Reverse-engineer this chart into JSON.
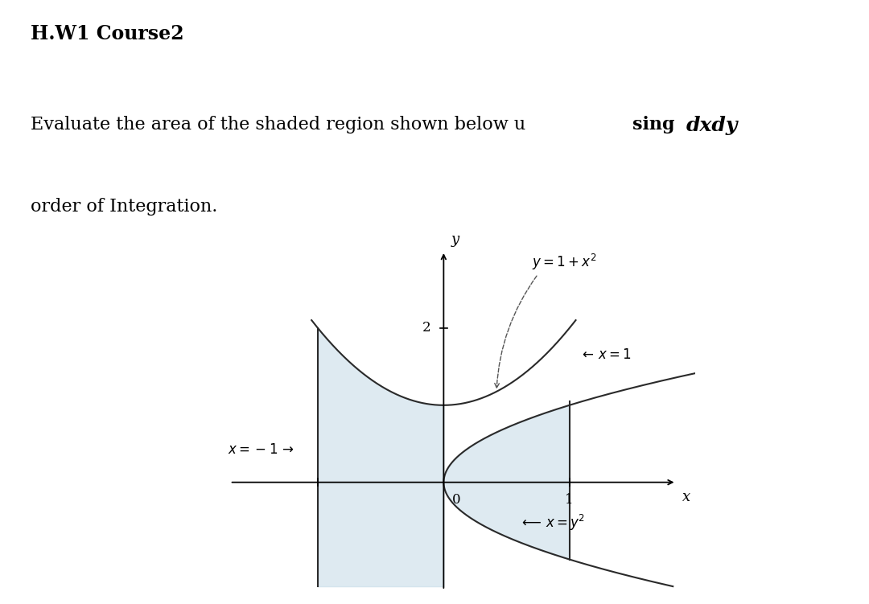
{
  "title": "H.W1 Course2",
  "body_line1_pre": "Evaluate the area of the shaded region shown below u",
  "body_line1_mid": "sing ",
  "body_line1_bold": "dxdy",
  "body_line2": "order of Integration.",
  "bg_color": "#ffffff",
  "shade_color": "#c8dce8",
  "shade_alpha": 0.6,
  "xlim": [
    -1.8,
    2.0
  ],
  "ylim": [
    -1.5,
    3.2
  ],
  "font_size_title": 17,
  "font_size_body": 16,
  "label_parabola": "y = 1 + x^2",
  "label_x1": "x = 1",
  "label_xm1": "x = -1",
  "label_sideways": "x = y^2",
  "label_y": "y",
  "label_x": "x",
  "tick_2": "2",
  "tick_0": "0",
  "tick_1": "1"
}
